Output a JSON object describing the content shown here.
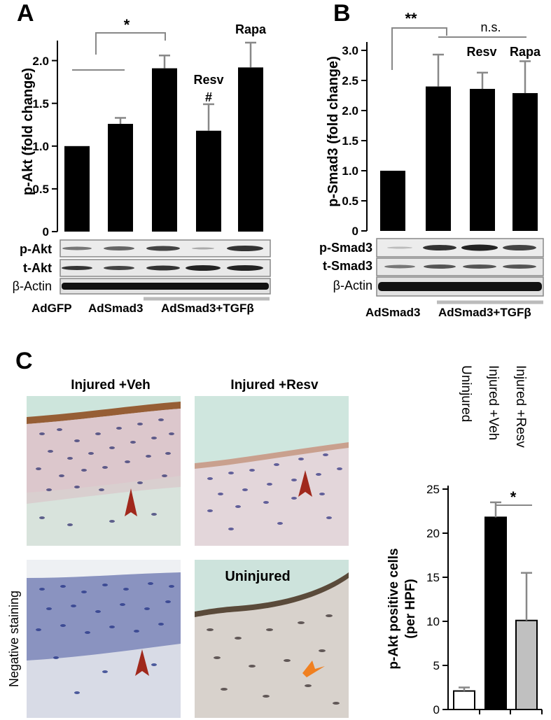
{
  "panels": {
    "a": {
      "letter": "A",
      "ylabel": "p-Akt (fold change)",
      "yticks": [
        "0",
        "0.5",
        "1.0",
        "1.5",
        "2.0"
      ],
      "sig_star": "*",
      "resv_label": "Resv",
      "hash": "#",
      "rapa_label": "Rapa",
      "blots": [
        "p-Akt",
        "t-Akt",
        "β-Actin"
      ],
      "xlabels": {
        "adgfp": "AdGFP",
        "adsmad3": "AdSmad3",
        "adsmad3_tgf": "AdSmad3+TGFβ"
      }
    },
    "b": {
      "letter": "B",
      "ylabel": "p-Smad3 (fold change)",
      "yticks": [
        "0",
        "0.5",
        "1.0",
        "1.5",
        "2.0",
        "2.5",
        "3.0"
      ],
      "sig_star": "**",
      "ns": "n.s.",
      "resv_label": "Resv",
      "rapa_label": "Rapa",
      "blots": [
        "p-Smad3",
        "t-Smad3",
        "β-Actin"
      ],
      "xlabels": {
        "adsmad3": "AdSmad3",
        "adsmad3_tgf": "AdSmad3+TGFβ"
      }
    },
    "c": {
      "letter": "C",
      "img_titles": {
        "veh": "Injured +Veh",
        "resv": "Injured +Resv",
        "uninjured": "Uninjured"
      },
      "side_label": "Negative staining",
      "col_labels": [
        "Uninjured",
        "Injured +Veh",
        "Injured +Resv"
      ],
      "ylabel_line1": "p-Akt positive cells",
      "ylabel_line2": "(per HPF)",
      "yticks": [
        "0",
        "5",
        "10",
        "15",
        "20",
        "25"
      ],
      "sig_star": "*"
    }
  },
  "colors": {
    "bar_black": "#000000",
    "bar_gray": "#c0c0c0",
    "bar_white": "#ffffff",
    "error": "#888888",
    "tissue_green": "#cfe6de",
    "tissue_pink": "#e2cfd2",
    "nuclei_blue": "#4a4a8c",
    "brown_stain": "#8a4a1a",
    "arrowhead_red": "#a0281c",
    "arrow_orange": "#f08020"
  },
  "chart_data": [
    {
      "type": "bar",
      "panel": "A",
      "ylabel": "p-Akt (fold change)",
      "ylim": [
        0,
        2.2
      ],
      "series": [
        {
          "values": [
            1.0,
            1.26,
            1.91,
            1.18,
            1.92
          ],
          "errors": [
            0.0,
            0.07,
            0.15,
            0.31,
            0.29
          ]
        }
      ]
    },
    {
      "type": "bar",
      "panel": "B",
      "ylabel": "p-Smad3 (fold change)",
      "ylim": [
        0,
        3.1
      ],
      "series": [
        {
          "values": [
            1.0,
            2.4,
            2.36,
            2.29
          ],
          "errors": [
            0.0,
            0.53,
            0.27,
            0.53
          ]
        }
      ]
    },
    {
      "type": "bar",
      "panel": "C",
      "ylabel": "p-Akt positive cells (per HPF)",
      "ylim": [
        0,
        25
      ],
      "categories": [
        "Uninjured",
        "Injured +Veh",
        "Injured +Resv"
      ],
      "series": [
        {
          "values": [
            2.1,
            21.8,
            10.1
          ],
          "errors": [
            0.4,
            1.7,
            5.4
          ]
        }
      ]
    }
  ]
}
